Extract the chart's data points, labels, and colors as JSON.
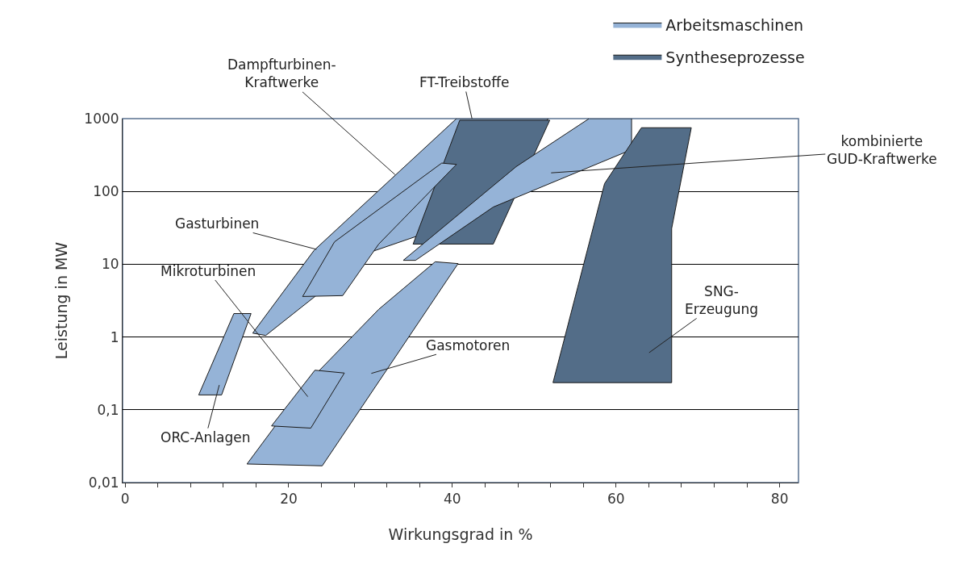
{
  "chart_data": {
    "type": "area",
    "xlabel": "Wirkungsgrad in %",
    "ylabel": "Leistung in MW",
    "log": "y",
    "grid": "y",
    "legend": "top right",
    "xlim": [
      -0.3,
      82.3
    ],
    "ylim": [
      0.01,
      1000
    ],
    "xticks": [
      0,
      {
        "value": 4,
        "label": null
      },
      {
        "value": 8,
        "label": null
      },
      {
        "value": 12,
        "label": null
      },
      {
        "value": 16,
        "label": null
      },
      20,
      {
        "value": 24,
        "label": null
      },
      {
        "value": 28,
        "label": null
      },
      {
        "value": 32,
        "label": null
      },
      {
        "value": 36,
        "label": null
      },
      40,
      {
        "value": 44,
        "label": null
      },
      {
        "value": 48,
        "label": null
      },
      {
        "value": 52,
        "label": null
      },
      {
        "value": 56,
        "label": null
      },
      60,
      {
        "value": 64,
        "label": null
      },
      {
        "value": 68,
        "label": null
      },
      {
        "value": 72,
        "label": null
      },
      {
        "value": 76,
        "label": null
      },
      80
    ],
    "yticks": [
      {
        "value": 0.01,
        "label": "0,01"
      },
      {
        "value": 0.1,
        "label": "0,1"
      },
      1,
      10,
      100,
      1000
    ],
    "series": [
      {
        "name": "Arbeitsmaschinen",
        "color": "#95b3d7",
        "x": [
          15.6,
          23.1,
          40.5,
          51.7,
          43.8,
          30.1,
          17.2
        ],
        "values": [
          1.13,
          15.5,
          1000,
          1000,
          50,
          14.8,
          1.05
        ]
      },
      {
        "name": "Syntheseprozesse",
        "color": "#536d88",
        "x": [
          35.2,
          40.9,
          51.9,
          45.0
        ],
        "values": [
          18.9,
          950,
          950,
          18.9
        ]
      },
      {
        "color": "#95b3d7",
        "x": [
          21.7,
          26.6,
          31.0,
          40.5,
          38.7,
          25.6
        ],
        "values": [
          3.6,
          3.7,
          18.9,
          235,
          245,
          20.3
        ]
      },
      {
        "color": "#95b3d7",
        "x": [
          34.0,
          35.5,
          45.0,
          61.9,
          61.9,
          56.7,
          47.8
        ],
        "values": [
          11.3,
          11.3,
          61,
          375,
          1000,
          1000,
          219
        ]
      },
      {
        "color": "#536d88",
        "x": [
          52.3,
          58.6,
          63.1,
          69.2,
          66.8,
          66.8
        ],
        "values": [
          0.236,
          128,
          750,
          750,
          31,
          0.236
        ]
      },
      {
        "color": "#95b3d7",
        "x": [
          9.0,
          11.8,
          15.4,
          13.3
        ],
        "values": [
          0.16,
          0.16,
          2.1,
          2.1
        ]
      },
      {
        "color": "#95b3d7",
        "x": [
          14.9,
          24.1,
          40.7,
          37.9,
          31.0,
          22.2
        ],
        "values": [
          0.018,
          0.017,
          10.2,
          10.8,
          2.4,
          0.23
        ]
      },
      {
        "color": "#95b3d7",
        "x": [
          17.9,
          22.7,
          26.8,
          23.2
        ],
        "values": [
          0.06,
          0.056,
          0.32,
          0.35
        ]
      }
    ],
    "annotations": [
      {
        "text": "Dampfturbinen-\nKraftwerke",
        "x": 33.0,
        "y": 170
      },
      {
        "text": "FT-Treibstoffe",
        "x": 42.4,
        "y": 1000
      },
      "kombinierte\nGUD-Kraftwerke",
      {
        "text": "Gasturbinen",
        "x": 23.4,
        "y": 16
      },
      "Mikroturbinen",
      "Gasmotoren",
      "SNG-\nErzeugung",
      "ORC-Anlagen"
    ]
  }
}
